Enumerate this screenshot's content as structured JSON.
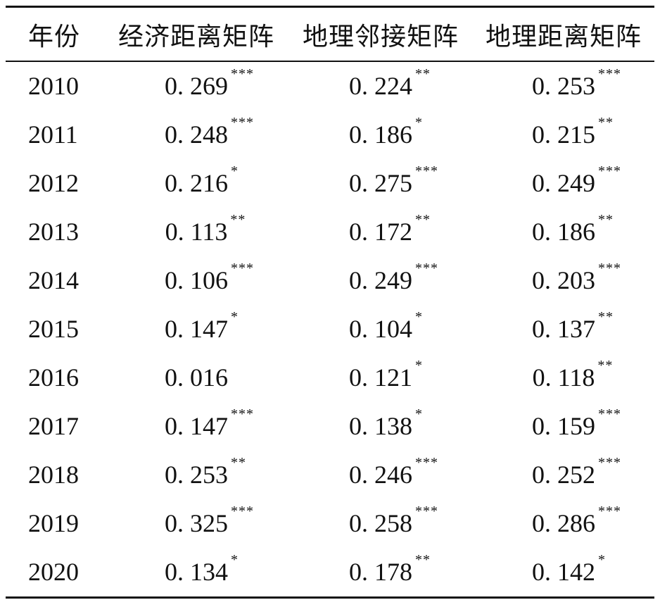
{
  "table": {
    "headers": [
      "年份",
      "经济距离矩阵",
      "地理邻接矩阵",
      "地理距离矩阵"
    ],
    "rows": [
      {
        "year": "2010",
        "cells": [
          {
            "value": "0. 269",
            "stars": "***"
          },
          {
            "value": "0. 224",
            "stars": "**"
          },
          {
            "value": "0. 253",
            "stars": "***"
          }
        ]
      },
      {
        "year": "2011",
        "cells": [
          {
            "value": "0. 248",
            "stars": "***"
          },
          {
            "value": "0. 186",
            "stars": "*"
          },
          {
            "value": "0. 215",
            "stars": "**"
          }
        ]
      },
      {
        "year": "2012",
        "cells": [
          {
            "value": "0. 216",
            "stars": "*"
          },
          {
            "value": "0. 275",
            "stars": "***"
          },
          {
            "value": "0. 249",
            "stars": "***"
          }
        ]
      },
      {
        "year": "2013",
        "cells": [
          {
            "value": "0. 113",
            "stars": "**"
          },
          {
            "value": "0. 172",
            "stars": "**"
          },
          {
            "value": "0. 186",
            "stars": "**"
          }
        ]
      },
      {
        "year": "2014",
        "cells": [
          {
            "value": "0. 106",
            "stars": "***"
          },
          {
            "value": "0. 249",
            "stars": "***"
          },
          {
            "value": "0. 203",
            "stars": "***"
          }
        ]
      },
      {
        "year": "2015",
        "cells": [
          {
            "value": "0. 147",
            "stars": "*"
          },
          {
            "value": "0. 104",
            "stars": "*"
          },
          {
            "value": "0. 137",
            "stars": "**"
          }
        ]
      },
      {
        "year": "2016",
        "cells": [
          {
            "value": "0. 016",
            "stars": ""
          },
          {
            "value": "0. 121",
            "stars": "*"
          },
          {
            "value": "0. 118",
            "stars": "**"
          }
        ]
      },
      {
        "year": "2017",
        "cells": [
          {
            "value": "0. 147",
            "stars": "***"
          },
          {
            "value": "0. 138",
            "stars": "*"
          },
          {
            "value": "0. 159",
            "stars": "***"
          }
        ]
      },
      {
        "year": "2018",
        "cells": [
          {
            "value": "0. 253",
            "stars": "**"
          },
          {
            "value": "0. 246",
            "stars": "***"
          },
          {
            "value": "0. 252",
            "stars": "***"
          }
        ]
      },
      {
        "year": "2019",
        "cells": [
          {
            "value": "0. 325",
            "stars": "***"
          },
          {
            "value": "0. 258",
            "stars": "***"
          },
          {
            "value": "0. 286",
            "stars": "***"
          }
        ]
      },
      {
        "year": "2020",
        "cells": [
          {
            "value": "0. 134",
            "stars": "*"
          },
          {
            "value": "0. 178",
            "stars": "**"
          },
          {
            "value": "0. 142",
            "stars": "*"
          }
        ]
      }
    ]
  }
}
